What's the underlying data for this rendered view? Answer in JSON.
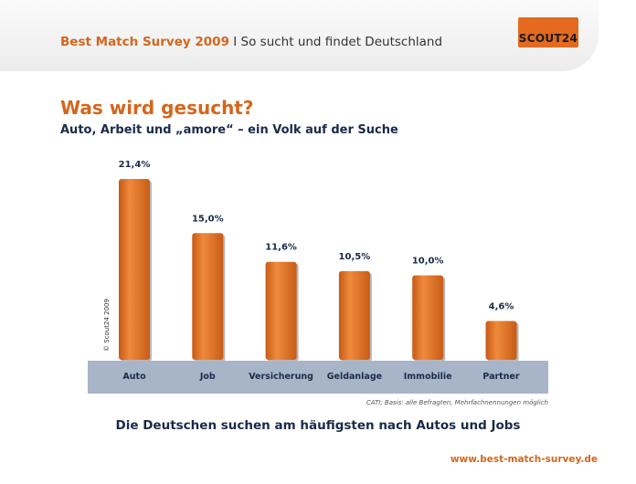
{
  "header": {
    "brand": "Best Match Survey 2009",
    "separator": "I",
    "tagline": "So sucht und findet Deutschland",
    "logo_text": "SCOUT24"
  },
  "slide": {
    "title": "Was wird gesucht?",
    "subtitle": "Auto, Arbeit und „amore“ – ein Volk auf der Suche"
  },
  "chart_data": {
    "type": "bar",
    "title": "",
    "xlabel": "",
    "ylabel": "",
    "ylim": [
      0,
      25
    ],
    "grid": false,
    "categories": [
      "Auto",
      "Job",
      "Versicherung",
      "Geldanlage",
      "Immobilie",
      "Partner"
    ],
    "values": [
      21.4,
      15.0,
      11.6,
      10.5,
      10.0,
      4.6
    ],
    "value_labels": [
      "21,4%",
      "15,0%",
      "11,6%",
      "10,5%",
      "10,0%",
      "4,6%"
    ],
    "copyright": "© Scout24 2009"
  },
  "footnote": "CATI; Basis: alle Befragten, Mehrfachnennungen möglich",
  "conclusion": "Die Deutschen suchen am häufigsten nach Autos und Jobs",
  "website": "www.best-match-survey.de",
  "colors": {
    "accent": "#d4661c",
    "bar": "#dd6a20",
    "bar_highlight": "#f0a060",
    "category_band": "#a8b5c8",
    "navy": "#1a2a4a"
  }
}
